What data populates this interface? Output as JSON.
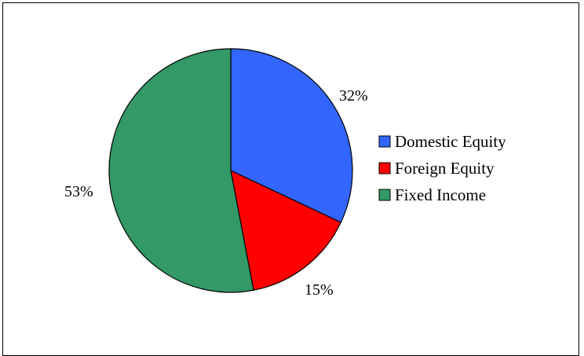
{
  "chart_data": {
    "type": "pie",
    "title": "",
    "series": [
      {
        "values": [
          32,
          15,
          53
        ],
        "categories": [
          "Domestic Equity",
          "Foreign Equity",
          "Fixed Income"
        ]
      }
    ],
    "slices": [
      {
        "label": "Domestic Equity",
        "value": 32,
        "value_label": "32%",
        "color": "#3366FF"
      },
      {
        "label": "Foreign Equity",
        "value": 15,
        "value_label": "15%",
        "color": "#FF0000"
      },
      {
        "label": "Fixed Income",
        "value": 53,
        "value_label": "53%",
        "color": "#339966"
      }
    ],
    "legend_position": "right",
    "start_angle": "12 o'clock",
    "direction": "clockwise"
  }
}
